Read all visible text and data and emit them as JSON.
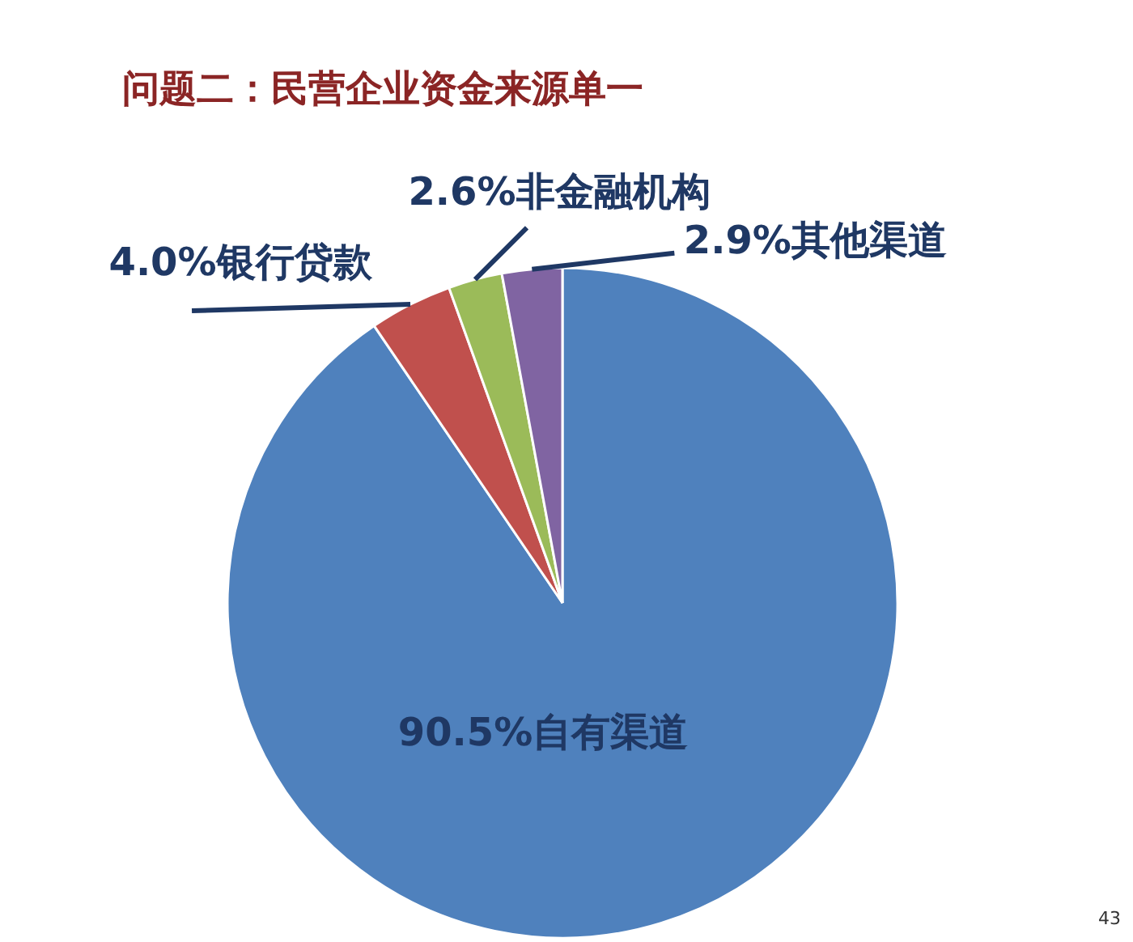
{
  "chart_data": {
    "type": "pie",
    "title": "问题二：民营企业资金来源单一",
    "categories": [
      "自有渠道",
      "银行贷款",
      "非金融机构",
      "其他渠道"
    ],
    "values": [
      90.5,
      4.0,
      2.6,
      2.9
    ],
    "value_labels": [
      "90.5%",
      "4.0%",
      "2.6%",
      "2.9%"
    ],
    "colors": [
      "#4f81bd",
      "#c0504d",
      "#9bbb59",
      "#8064a2"
    ],
    "annotations": [
      "43"
    ]
  }
}
